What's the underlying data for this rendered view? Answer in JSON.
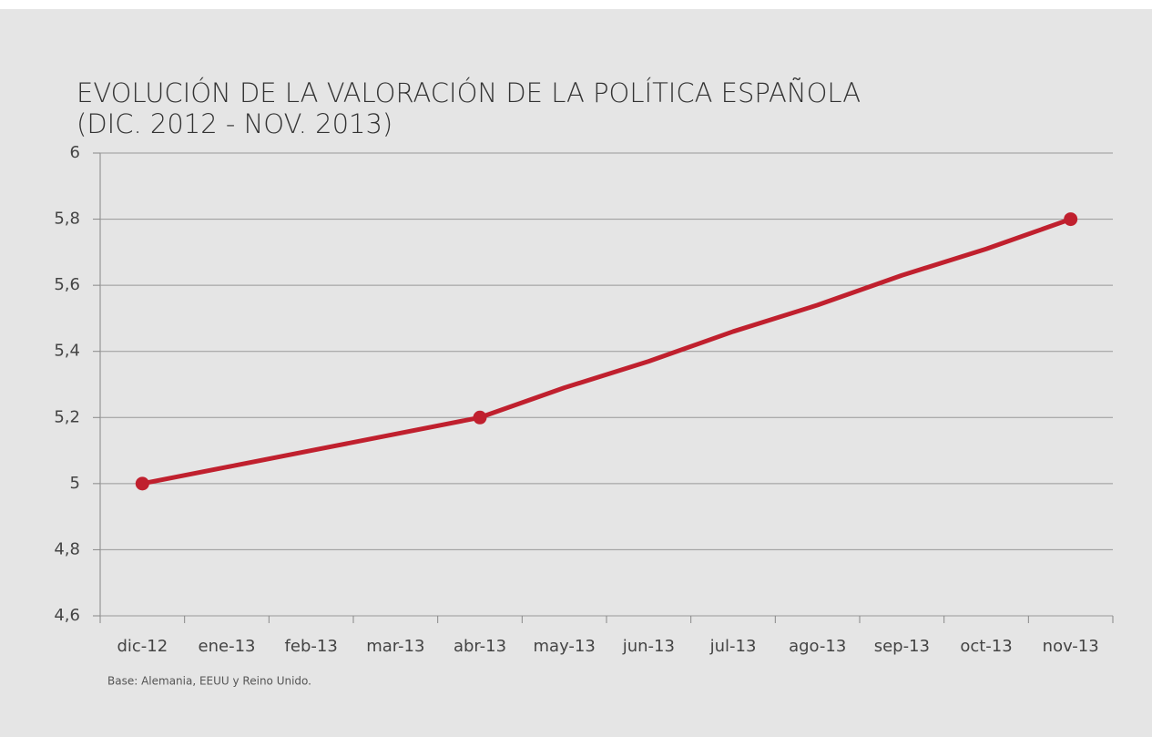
{
  "chart_data": {
    "type": "line",
    "title": "EVOLUCIÓN DE LA VALORACIÓN DE LA POLÍTICA ESPAÑOLA",
    "subtitle": "(DIC. 2012 - NOV. 2013)",
    "note": "Base: Alemania, EEUU y Reino Unido.",
    "categories": [
      "dic-12",
      "ene-13",
      "feb-13",
      "mar-13",
      "abr-13",
      "may-13",
      "jun-13",
      "jul-13",
      "ago-13",
      "sep-13",
      "oct-13",
      "nov-13"
    ],
    "series": [
      {
        "color": "#c0202e",
        "values": [
          5,
          5.05,
          5.1,
          5.15,
          5.2,
          5.29,
          5.37,
          5.46,
          5.54,
          5.63,
          5.71,
          5.8
        ],
        "markers": [
          true,
          false,
          false,
          false,
          true,
          false,
          false,
          false,
          false,
          false,
          false,
          true
        ]
      }
    ],
    "ylim": [
      4.6,
      6
    ],
    "yticks": [
      {
        "value": 4.6,
        "label": "4,6"
      },
      {
        "value": 4.8,
        "label": "4,8"
      },
      5,
      {
        "value": 5.2,
        "label": "5,2"
      },
      {
        "value": 5.4,
        "label": "5,4"
      },
      {
        "value": 5.6,
        "label": "5,6"
      },
      {
        "value": 5.8,
        "label": "5,8"
      },
      6
    ],
    "grid": true
  }
}
